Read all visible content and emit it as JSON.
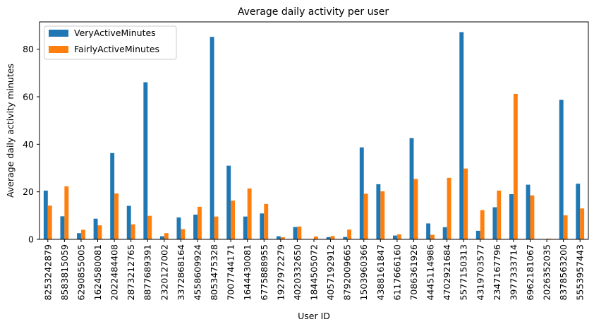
{
  "chart_data": {
    "type": "bar",
    "title": "Average daily activity per user",
    "xlabel": "User ID",
    "ylabel": "Average daily activity minutes",
    "ylim": [
      0,
      91.5
    ],
    "yticks": [
      0,
      20,
      40,
      60,
      80
    ],
    "grid": false,
    "legend_position": "top-left",
    "categories": [
      "8253242879",
      "8583815059",
      "6290855005",
      "1624580081",
      "2022484408",
      "2873212765",
      "8877689391",
      "2320127002",
      "3372868164",
      "4558609924",
      "8053475328",
      "7007744171",
      "1644430081",
      "6775888955",
      "1927972279",
      "4020332650",
      "1844505072",
      "4057192912",
      "8792009665",
      "1503960366",
      "4388161847",
      "6117666160",
      "7086361926",
      "4445114986",
      "4702921684",
      "5577150313",
      "4319703577",
      "2347167796",
      "3977333714",
      "6962181067",
      "2026352035",
      "8378563200",
      "5553957443"
    ],
    "series": [
      {
        "name": "VeryActiveMinutes",
        "color": "#1f77b4",
        "values": [
          20.5,
          9.7,
          2.6,
          8.7,
          36.3,
          14.1,
          66.1,
          1.3,
          9.2,
          10.4,
          85.2,
          31.0,
          9.6,
          10.9,
          1.3,
          5.2,
          0.1,
          0.9,
          1.0,
          38.7,
          23.2,
          1.6,
          42.6,
          6.7,
          5.1,
          87.2,
          3.6,
          13.5,
          19.0,
          23.0,
          0.0,
          58.7,
          23.4
        ]
      },
      {
        "name": "FairlyActiveMinutes",
        "color": "#ff7f0e",
        "values": [
          14.2,
          22.3,
          4.0,
          5.9,
          19.3,
          6.3,
          9.9,
          2.6,
          4.3,
          13.7,
          9.6,
          16.3,
          21.4,
          14.9,
          0.9,
          5.4,
          1.2,
          1.4,
          4.1,
          19.2,
          20.2,
          2.1,
          25.4,
          1.9,
          25.9,
          29.8,
          12.3,
          20.5,
          61.2,
          18.5,
          0.3,
          10.1,
          13.0
        ]
      }
    ]
  }
}
